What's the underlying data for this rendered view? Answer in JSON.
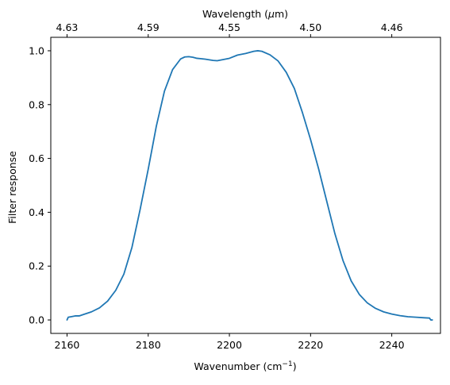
{
  "chart_data": {
    "type": "line",
    "xlabel": "Wavenumber (cm",
    "xlabel_sup": "−1",
    "xlabel_close": ")",
    "ylabel": "Filter response",
    "top_xlabel": "Wavelength (",
    "top_xlabel_mu": "μ",
    "top_xlabel_close": "m)",
    "xlim": [
      2156,
      2252
    ],
    "ylim": [
      -0.05,
      1.05
    ],
    "x_ticks": [
      2160,
      2180,
      2200,
      2220,
      2240
    ],
    "x_tick_labels": [
      "2160",
      "2180",
      "2200",
      "2220",
      "2240"
    ],
    "y_ticks": [
      0.0,
      0.2,
      0.4,
      0.6,
      0.8,
      1.0
    ],
    "y_tick_labels": [
      "0.0",
      "0.2",
      "0.4",
      "0.6",
      "0.8",
      "1.0"
    ],
    "top_ticks": [
      {
        "label": "4.63",
        "wavenumber": 2160
      },
      {
        "label": "4.59",
        "wavenumber": 2180
      },
      {
        "label": "4.55",
        "wavenumber": 2200
      },
      {
        "label": "4.50",
        "wavenumber": 2220
      },
      {
        "label": "4.46",
        "wavenumber": 2240
      }
    ],
    "grid": false,
    "series": [
      {
        "color": "#1f77b4",
        "x": [
          2160,
          2160.3,
          2161,
          2162,
          2163,
          2164,
          2166,
          2168,
          2170,
          2172,
          2174,
          2176,
          2178,
          2180,
          2182,
          2184,
          2186,
          2188,
          2189,
          2190,
          2191,
          2192,
          2194,
          2196,
          2197,
          2198,
          2200,
          2202,
          2204,
          2206,
          2207,
          2208,
          2210,
          2212,
          2214,
          2216,
          2218,
          2220,
          2222,
          2224,
          2226,
          2228,
          2230,
          2232,
          2234,
          2236,
          2238,
          2240,
          2242,
          2244,
          2246,
          2248,
          2249.3,
          2249.6,
          2250
        ],
        "y": [
          0.0,
          0.01,
          0.012,
          0.015,
          0.015,
          0.02,
          0.03,
          0.045,
          0.07,
          0.11,
          0.17,
          0.27,
          0.41,
          0.56,
          0.72,
          0.85,
          0.93,
          0.97,
          0.977,
          0.978,
          0.976,
          0.972,
          0.969,
          0.964,
          0.963,
          0.966,
          0.972,
          0.984,
          0.99,
          0.998,
          1.0,
          0.998,
          0.985,
          0.962,
          0.92,
          0.86,
          0.77,
          0.67,
          0.56,
          0.44,
          0.32,
          0.22,
          0.145,
          0.095,
          0.063,
          0.043,
          0.03,
          0.022,
          0.016,
          0.012,
          0.01,
          0.008,
          0.007,
          0.0,
          0.0
        ]
      }
    ]
  }
}
